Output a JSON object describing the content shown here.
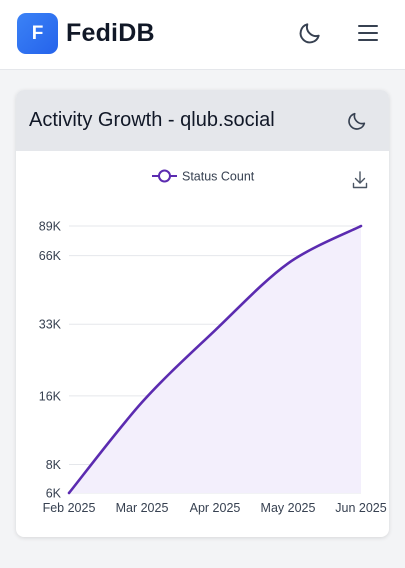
{
  "header": {
    "logo_letter": "F",
    "brand": "FediDB",
    "theme_toggle_icon": "moon-icon",
    "menu_icon": "hamburger-menu-icon"
  },
  "card": {
    "title": "Activity Growth - qlub.social",
    "theme_icon": "moon-icon",
    "download_icon": "download-icon"
  },
  "colors": {
    "accent": "#3b82f6",
    "series": "#5b2bb0",
    "area": "#f3effc"
  },
  "chart_data": {
    "type": "area",
    "x": [
      "Feb 2025",
      "Mar 2025",
      "Apr 2025",
      "May 2025",
      "Jun 2025"
    ],
    "series": [
      {
        "name": "Status Count",
        "values": [
          6000,
          15000,
          31000,
          61000,
          89000
        ]
      }
    ],
    "y_ticks": [
      {
        "value": 6000,
        "label": "6K"
      },
      {
        "value": 8000,
        "label": "8K"
      },
      {
        "value": 16000,
        "label": "16K"
      },
      {
        "value": 33000,
        "label": "33K"
      },
      {
        "value": 66000,
        "label": "66K"
      },
      {
        "value": 89000,
        "label": "89K"
      }
    ],
    "x_tick_labels": [
      "Feb 2025",
      "Mar 2025",
      "Apr 2025",
      "May 2025",
      "Jun 2025"
    ],
    "y_scale": "log",
    "ylim": [
      6000,
      89000
    ],
    "grid": true,
    "legend": "top-center"
  }
}
